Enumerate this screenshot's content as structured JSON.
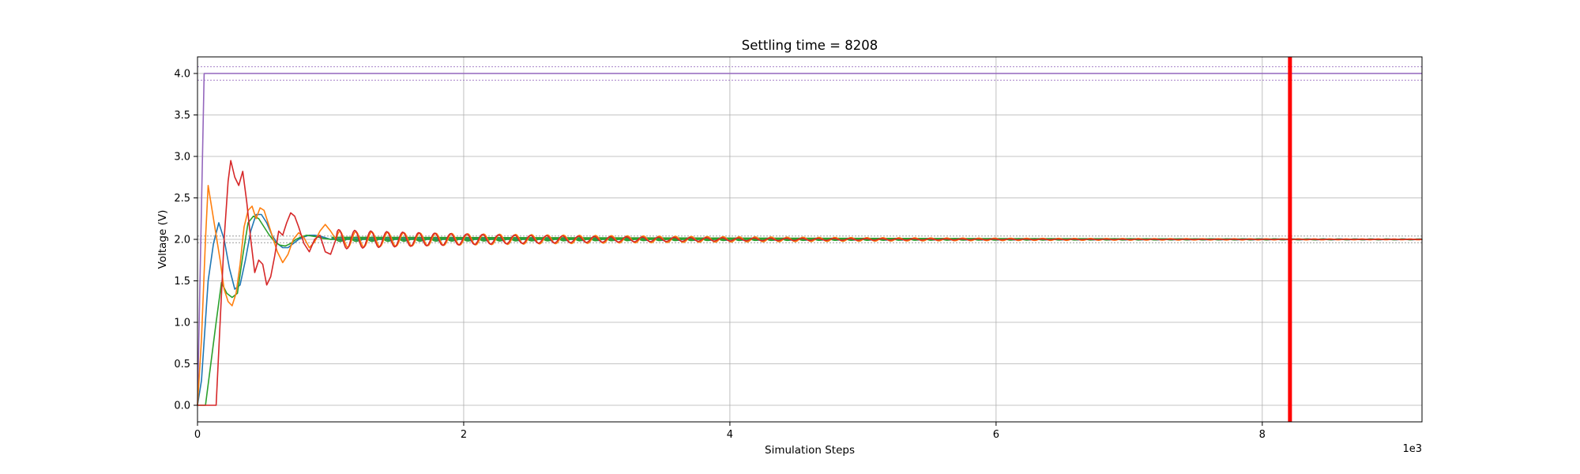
{
  "chart_data": {
    "type": "line",
    "title": "Settling time = 8208",
    "xlabel": "Simulation Steps",
    "ylabel": "Voltage (V)",
    "x_offset_text": "1e3",
    "xlim": [
      0,
      9.2
    ],
    "ylim": [
      -0.2,
      4.2
    ],
    "x_ticks": [
      0,
      2,
      4,
      6,
      8
    ],
    "x_tick_labels": [
      "0",
      "2",
      "4",
      "6",
      "8"
    ],
    "y_ticks": [
      0.0,
      0.5,
      1.0,
      1.5,
      2.0,
      2.5,
      3.0,
      3.5,
      4.0
    ],
    "y_tick_labels": [
      "0.0",
      "0.5",
      "1.0",
      "1.5",
      "2.0",
      "2.5",
      "3.0",
      "3.5",
      "4.0"
    ],
    "grid": true,
    "legend": "none",
    "settling_time_marker": {
      "x": 8.208,
      "color": "#ff0000"
    },
    "tolerance_bands": [
      {
        "level": 4.0,
        "lower": 3.92,
        "upper": 4.08,
        "color": "#9467bd"
      },
      {
        "level": 2.0,
        "lower": 1.96,
        "upper": 2.04,
        "color": "#7f7f7f"
      }
    ],
    "series": [
      {
        "color": "#9467bd",
        "steady": 4.0,
        "points": [
          [
            0,
            0
          ],
          [
            0.05,
            4.0
          ],
          [
            9.2,
            4.0
          ]
        ]
      },
      {
        "color": "#1f77b4",
        "steady": 2.0,
        "points": [
          [
            0,
            0
          ],
          [
            0.03,
            0.3
          ],
          [
            0.08,
            1.5
          ],
          [
            0.12,
            1.95
          ],
          [
            0.16,
            2.2
          ],
          [
            0.2,
            2.0
          ],
          [
            0.24,
            1.65
          ],
          [
            0.28,
            1.4
          ],
          [
            0.32,
            1.45
          ],
          [
            0.36,
            1.75
          ],
          [
            0.4,
            2.1
          ],
          [
            0.44,
            2.3
          ],
          [
            0.48,
            2.3
          ],
          [
            0.52,
            2.2
          ],
          [
            0.56,
            2.05
          ],
          [
            0.6,
            1.95
          ],
          [
            0.64,
            1.9
          ],
          [
            0.68,
            1.9
          ],
          [
            0.72,
            1.95
          ],
          [
            0.76,
            2.0
          ],
          [
            0.8,
            2.03
          ],
          [
            0.84,
            2.05
          ],
          [
            0.88,
            2.05
          ],
          [
            0.92,
            2.04
          ],
          [
            0.96,
            2.02
          ],
          [
            1.0,
            2.0
          ],
          [
            1.2,
            2.0
          ],
          [
            9.2,
            2.0
          ]
        ],
        "osc_start": 1.0,
        "osc_amp": 0.02,
        "osc_period": 0.12,
        "osc_decay": 5.0,
        "osc_phase": 0.0
      },
      {
        "color": "#2ca02c",
        "steady": 2.0,
        "points": [
          [
            0,
            0
          ],
          [
            0.06,
            0.0
          ],
          [
            0.1,
            0.5
          ],
          [
            0.14,
            1.0
          ],
          [
            0.18,
            1.48
          ],
          [
            0.22,
            1.35
          ],
          [
            0.26,
            1.3
          ],
          [
            0.3,
            1.35
          ],
          [
            0.34,
            1.8
          ],
          [
            0.38,
            2.2
          ],
          [
            0.42,
            2.28
          ],
          [
            0.46,
            2.25
          ],
          [
            0.5,
            2.15
          ],
          [
            0.54,
            2.05
          ],
          [
            0.58,
            1.97
          ],
          [
            0.62,
            1.93
          ],
          [
            0.66,
            1.92
          ],
          [
            0.7,
            1.95
          ],
          [
            0.74,
            2.0
          ],
          [
            0.78,
            2.03
          ],
          [
            0.82,
            2.05
          ],
          [
            0.86,
            2.04
          ],
          [
            0.9,
            2.03
          ],
          [
            0.95,
            2.01
          ],
          [
            1.0,
            2.0
          ],
          [
            9.2,
            2.0
          ]
        ],
        "osc_start": 1.0,
        "osc_amp": 0.025,
        "osc_period": 0.12,
        "osc_decay": 5.0,
        "osc_phase": 1.0
      },
      {
        "color": "#ff7f0e",
        "steady": 2.0,
        "points": [
          [
            0,
            0
          ],
          [
            0.03,
            0.8
          ],
          [
            0.06,
            2.0
          ],
          [
            0.08,
            2.65
          ],
          [
            0.11,
            2.35
          ],
          [
            0.14,
            2.05
          ],
          [
            0.17,
            1.75
          ],
          [
            0.2,
            1.4
          ],
          [
            0.23,
            1.25
          ],
          [
            0.26,
            1.2
          ],
          [
            0.29,
            1.35
          ],
          [
            0.32,
            1.7
          ],
          [
            0.35,
            2.15
          ],
          [
            0.38,
            2.35
          ],
          [
            0.41,
            2.4
          ],
          [
            0.44,
            2.25
          ],
          [
            0.47,
            2.38
          ],
          [
            0.5,
            2.35
          ],
          [
            0.53,
            2.2
          ],
          [
            0.56,
            2.05
          ],
          [
            0.6,
            1.85
          ],
          [
            0.64,
            1.72
          ],
          [
            0.68,
            1.82
          ],
          [
            0.72,
            2.0
          ],
          [
            0.76,
            2.08
          ],
          [
            0.8,
            2.02
          ],
          [
            0.84,
            1.9
          ],
          [
            0.88,
            1.97
          ],
          [
            0.92,
            2.1
          ],
          [
            0.96,
            2.18
          ],
          [
            1.0,
            2.1
          ],
          [
            1.04,
            2.0
          ]
        ],
        "osc_start": 1.04,
        "osc_amp": 0.1,
        "osc_period": 0.12,
        "osc_decay": 2.6,
        "osc_phase": 0.0
      },
      {
        "color": "#d62728",
        "steady": 2.0,
        "points": [
          [
            0,
            0
          ],
          [
            0.05,
            0.0
          ],
          [
            0.1,
            0.0
          ],
          [
            0.14,
            0.0
          ],
          [
            0.17,
            1.0
          ],
          [
            0.2,
            2.0
          ],
          [
            0.23,
            2.7
          ],
          [
            0.25,
            2.95
          ],
          [
            0.28,
            2.75
          ],
          [
            0.31,
            2.65
          ],
          [
            0.34,
            2.82
          ],
          [
            0.37,
            2.45
          ],
          [
            0.4,
            2.0
          ],
          [
            0.43,
            1.6
          ],
          [
            0.46,
            1.75
          ],
          [
            0.49,
            1.7
          ],
          [
            0.52,
            1.45
          ],
          [
            0.55,
            1.55
          ],
          [
            0.58,
            1.8
          ],
          [
            0.61,
            2.1
          ],
          [
            0.64,
            2.05
          ],
          [
            0.67,
            2.2
          ],
          [
            0.7,
            2.32
          ],
          [
            0.73,
            2.28
          ],
          [
            0.76,
            2.15
          ],
          [
            0.8,
            1.95
          ],
          [
            0.84,
            1.85
          ],
          [
            0.88,
            2.0
          ],
          [
            0.92,
            2.05
          ],
          [
            0.96,
            1.85
          ],
          [
            1.0,
            1.82
          ],
          [
            1.04,
            2.0
          ]
        ],
        "osc_start": 1.04,
        "osc_amp": 0.12,
        "osc_period": 0.12,
        "osc_decay": 1.6,
        "osc_phase": 0.4
      }
    ]
  }
}
